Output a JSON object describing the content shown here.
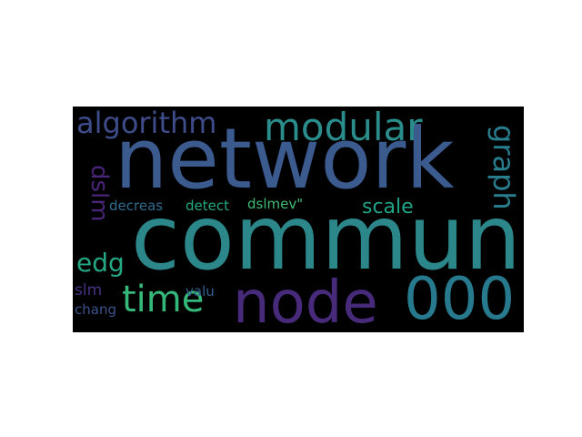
{
  "wordcloud": {
    "words": [
      {
        "text": "network",
        "color": "#3b5a8e"
      },
      {
        "text": "commun",
        "color": "#2c878a"
      },
      {
        "text": "node",
        "color": "#472a79"
      },
      {
        "text": "000",
        "color": "#277a8e"
      },
      {
        "text": "modular",
        "color": "#2a8d8b"
      },
      {
        "text": "algorithm",
        "color": "#3e4d8a"
      },
      {
        "text": "time",
        "color": "#35b779"
      },
      {
        "text": "graph",
        "color": "#287e8e"
      },
      {
        "text": "dslm",
        "color": "#482576"
      },
      {
        "text": "edg",
        "color": "#24a884"
      },
      {
        "text": "scale",
        "color": "#20a386"
      },
      {
        "text": "decreas",
        "color": "#2f6c8e"
      },
      {
        "text": "detect",
        "color": "#23a983"
      },
      {
        "text": "dslmev\"",
        "color": "#3fbc73"
      },
      {
        "text": "slm",
        "color": "#46327e"
      },
      {
        "text": "valu",
        "color": "#355f8d"
      },
      {
        "text": "chang",
        "color": "#3b528b"
      }
    ]
  }
}
